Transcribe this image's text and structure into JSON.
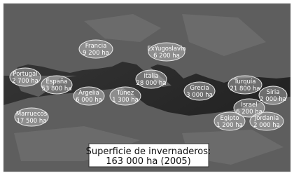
{
  "map": {
    "regions": [
      {
        "name": "Francia",
        "area": "9 200 ha"
      },
      {
        "name": "ExYugoslavia",
        "area": "6 200 ha"
      },
      {
        "name": "Portugal",
        "area": "2 700 ha"
      },
      {
        "name": "España",
        "area": "53 800 ha"
      },
      {
        "name": "Italia",
        "area": "28 000 ha"
      },
      {
        "name": "Argelia",
        "area": "6 000 ha"
      },
      {
        "name": "Túnez",
        "area": "1 300 ha"
      },
      {
        "name": "Grecia",
        "area": "3 000 ha"
      },
      {
        "name": "Turquía",
        "area": "21 800 ha"
      },
      {
        "name": "Siria",
        "area": "2 000 ha"
      },
      {
        "name": "Israel",
        "area": "6 200 ha"
      },
      {
        "name": "Marruecos",
        "area": "17 500 ha"
      },
      {
        "name": "Egipto",
        "area": "1 200 ha"
      },
      {
        "name": "Jordania",
        "area": "2 000 ha"
      }
    ],
    "caption": {
      "line1": "Superficie de invernaderos:",
      "line2": "163 000 ha (2005)"
    }
  }
}
